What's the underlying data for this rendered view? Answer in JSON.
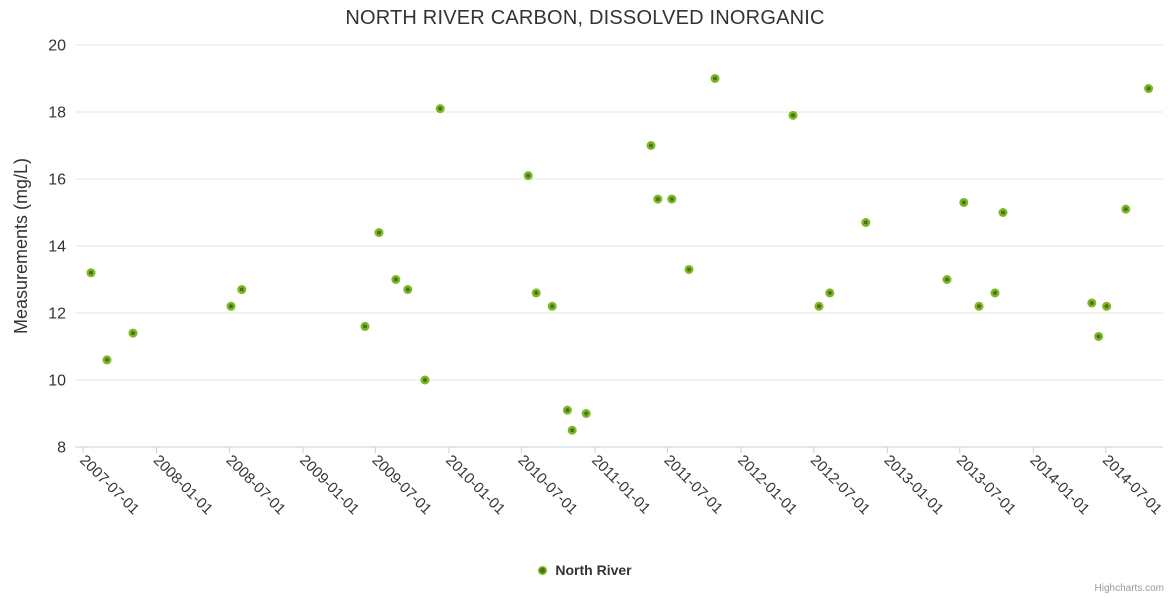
{
  "chart_data": {
    "type": "scatter",
    "title": "NORTH RIVER CARBON, DISSOLVED INORGANIC",
    "xlabel": "",
    "ylabel": "Measurements (mg/L)",
    "ylim": [
      8,
      20
    ],
    "yticks": [
      8,
      10,
      12,
      14,
      16,
      18,
      20
    ],
    "xlim": [
      "2007-06-11",
      "2014-11-21"
    ],
    "xticks": [
      "2007-07-01",
      "2008-01-01",
      "2008-07-01",
      "2009-01-01",
      "2009-07-01",
      "2010-01-01",
      "2010-07-01",
      "2011-01-01",
      "2011-07-01",
      "2012-01-01",
      "2012-07-01",
      "2013-01-01",
      "2013-07-01",
      "2014-01-01",
      "2014-07-01"
    ],
    "xtick_label_rotation": 45,
    "grid": "horizontal-only",
    "legend_position": "bottom-center",
    "series": [
      {
        "name": "North River",
        "points": [
          [
            "2007-07-21",
            13.2
          ],
          [
            "2007-08-30",
            10.6
          ],
          [
            "2007-11-03",
            11.4
          ],
          [
            "2008-07-05",
            12.2
          ],
          [
            "2008-08-01",
            12.7
          ],
          [
            "2009-06-05",
            11.6
          ],
          [
            "2009-07-10",
            14.4
          ],
          [
            "2009-08-21",
            13.0
          ],
          [
            "2009-09-20",
            12.7
          ],
          [
            "2009-11-02",
            10.0
          ],
          [
            "2009-12-10",
            18.1
          ],
          [
            "2010-07-18",
            16.1
          ],
          [
            "2010-08-07",
            12.6
          ],
          [
            "2010-09-16",
            12.2
          ],
          [
            "2010-10-24",
            9.1
          ],
          [
            "2010-11-05",
            8.5
          ],
          [
            "2010-12-10",
            9.0
          ],
          [
            "2011-05-21",
            17.0
          ],
          [
            "2011-06-07",
            15.4
          ],
          [
            "2011-07-12",
            15.4
          ],
          [
            "2011-08-24",
            13.3
          ],
          [
            "2011-10-28",
            19.0
          ],
          [
            "2012-05-10",
            17.9
          ],
          [
            "2012-07-14",
            12.2
          ],
          [
            "2012-08-10",
            12.6
          ],
          [
            "2012-11-08",
            14.7
          ],
          [
            "2013-05-30",
            13.0
          ],
          [
            "2013-07-11",
            15.3
          ],
          [
            "2013-08-18",
            12.2
          ],
          [
            "2013-09-27",
            12.6
          ],
          [
            "2013-10-17",
            15.0
          ],
          [
            "2014-05-27",
            12.3
          ],
          [
            "2014-06-13",
            11.3
          ],
          [
            "2014-07-03",
            12.2
          ],
          [
            "2014-08-20",
            15.1
          ],
          [
            "2014-10-16",
            18.7
          ]
        ]
      }
    ]
  },
  "credits": "Highcharts.com",
  "colors": {
    "background": "#ffffff",
    "gridline": "#e6e6e6",
    "axis": "#c0d0e0",
    "label": "#333333",
    "title": "#333333",
    "point_outer": "#7db823",
    "point_inner": "#467314",
    "credits": "#999999"
  }
}
